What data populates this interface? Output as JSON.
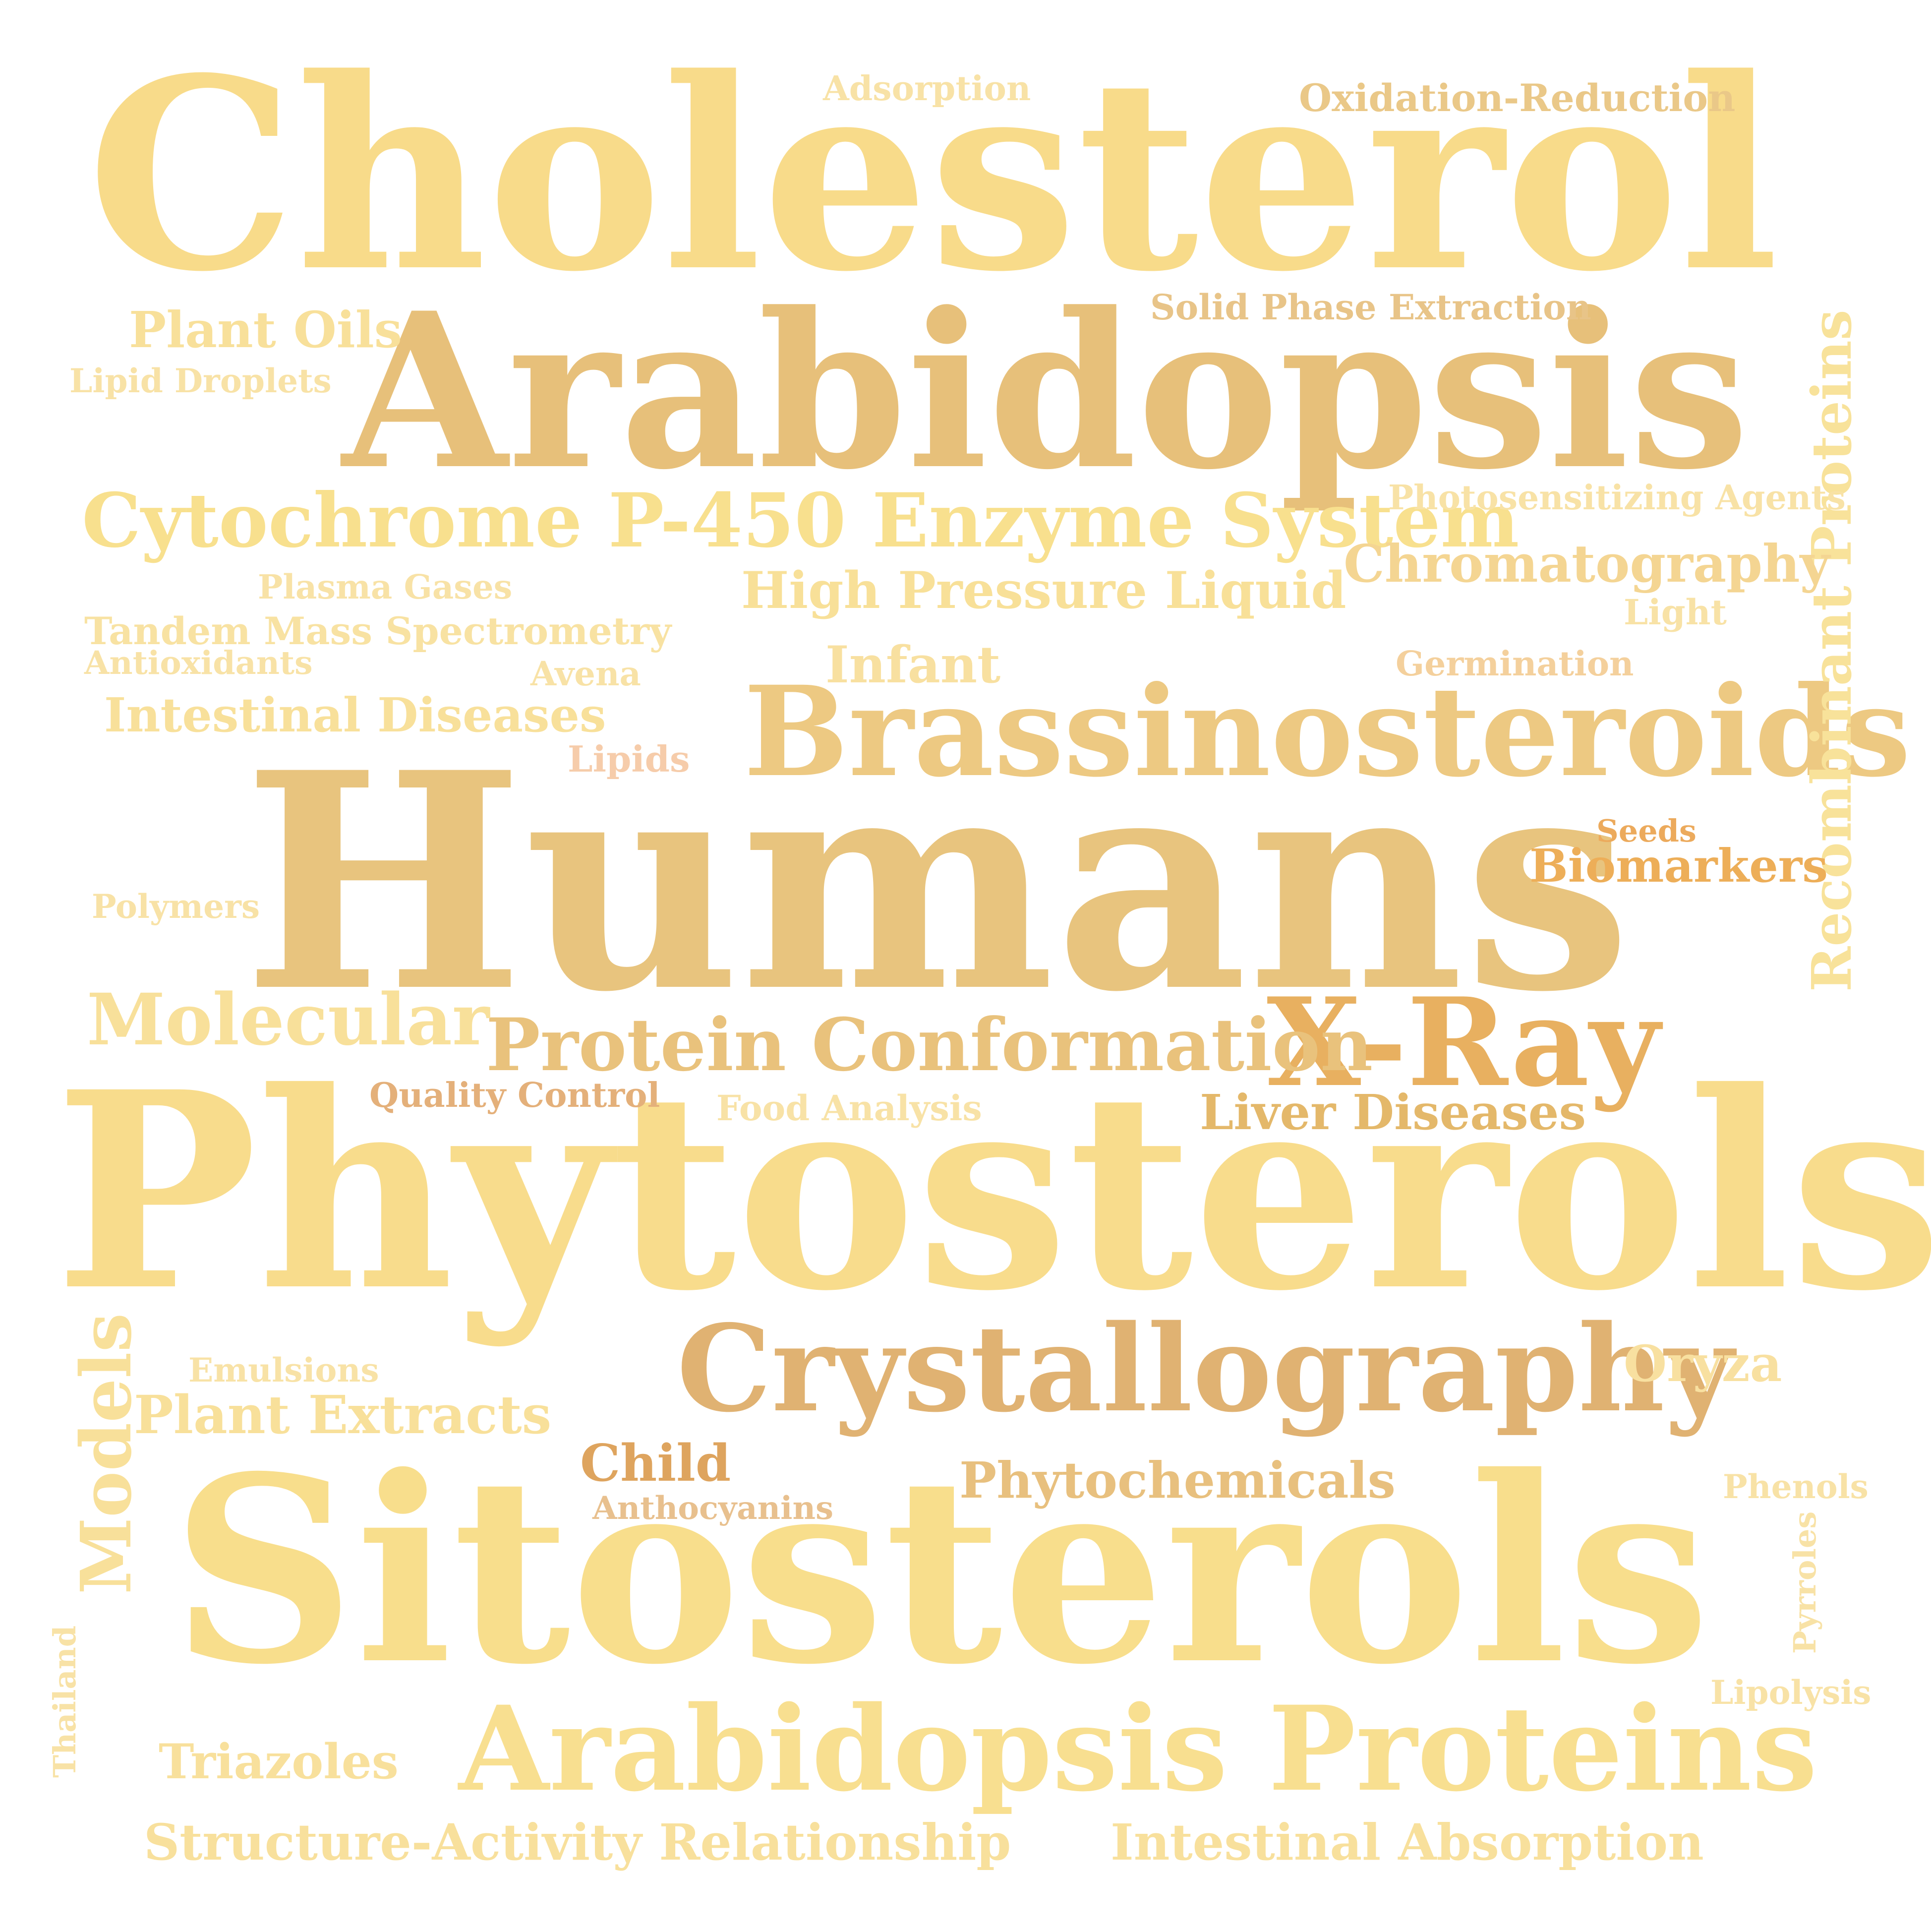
{
  "words": [
    {
      "text": "Cholesterol",
      "color": "#F8DB8A"
    },
    {
      "text": "Arabidopsis",
      "color": "#E7C07A"
    },
    {
      "text": "Humans",
      "color": "#E8C47E"
    },
    {
      "text": "Phytosterols",
      "color": "#F8DC8C"
    },
    {
      "text": "Sitosterols",
      "color": "#F8DE8C"
    },
    {
      "text": "Brassinosteroids",
      "color": "#EDC982"
    },
    {
      "text": "Crystallography",
      "color": "#E0B272"
    },
    {
      "text": "Arabidopsis Proteins",
      "color": "#F8DF90"
    },
    {
      "text": "X-Ray",
      "color": "#E8B060"
    },
    {
      "text": "Cytochrome P-450 Enzyme System",
      "color": "#F8E08E"
    },
    {
      "text": "Recombinant Proteins",
      "color": "#F8E29A"
    },
    {
      "text": "Protein Conformation",
      "color": "#E9C27C"
    },
    {
      "text": "Chromatography",
      "color": "#F4D592"
    },
    {
      "text": "High Pressure Liquid",
      "color": "#F8E098"
    },
    {
      "text": "Molecular",
      "color": "#F8E09A"
    },
    {
      "text": "Models",
      "color": "#F8E09A"
    },
    {
      "text": "Intestinal Diseases",
      "color": "#F8E09A"
    },
    {
      "text": "Plant Extracts",
      "color": "#F8E09A"
    },
    {
      "text": "Phytochemicals",
      "color": "#E8C07E"
    },
    {
      "text": "Structure-Activity Relationship",
      "color": "#F8E09C"
    },
    {
      "text": "Intestinal Absorption",
      "color": "#F8E09C"
    },
    {
      "text": "Liver Diseases",
      "color": "#E4B86A"
    },
    {
      "text": "Plant Oils",
      "color": "#F8E09A"
    },
    {
      "text": "Triazoles",
      "color": "#F8E09C"
    },
    {
      "text": "Biomarkers",
      "color": "#EDAE58"
    },
    {
      "text": "Infant",
      "color": "#F8E0A0"
    },
    {
      "text": "Child",
      "color": "#DEA45E"
    },
    {
      "text": "Oryza",
      "color": "#F8E0A0"
    },
    {
      "text": "Tandem Mass Spectrometry",
      "color": "#F8E2A2"
    },
    {
      "text": "Oxidation-Reduction",
      "color": "#EAC888"
    },
    {
      "text": "Solid Phase Extraction",
      "color": "#E8C488"
    },
    {
      "text": "Photosensitizing Agents",
      "color": "#F8E2A6"
    },
    {
      "text": "Adsorption",
      "color": "#F8E2A6"
    },
    {
      "text": "Lipid Droplets",
      "color": "#F8E2A6"
    },
    {
      "text": "Plasma Gases",
      "color": "#F8E2A6"
    },
    {
      "text": "Antioxidants",
      "color": "#F8E2A6"
    },
    {
      "text": "Avena",
      "color": "#F8E2A6"
    },
    {
      "text": "Germination",
      "color": "#F4D09C"
    },
    {
      "text": "Light",
      "color": "#F8E2A6"
    },
    {
      "text": "Lipids",
      "color": "#F6CCAA"
    },
    {
      "text": "Seeds",
      "color": "#ECAA5C"
    },
    {
      "text": "Polymers",
      "color": "#F8E2A6"
    },
    {
      "text": "Quality Control",
      "color": "#E4B07A"
    },
    {
      "text": "Food Analysis",
      "color": "#F8E2A6"
    },
    {
      "text": "Emulsions",
      "color": "#F8E2A6"
    },
    {
      "text": "Anthocyanins",
      "color": "#E8C08E"
    },
    {
      "text": "Phenols",
      "color": "#F8E2A6"
    },
    {
      "text": "Pyrroles",
      "color": "#F8E2A6"
    },
    {
      "text": "Lipolysis",
      "color": "#F8E2A6"
    },
    {
      "text": "Thailand",
      "color": "#F8E2A6"
    }
  ]
}
